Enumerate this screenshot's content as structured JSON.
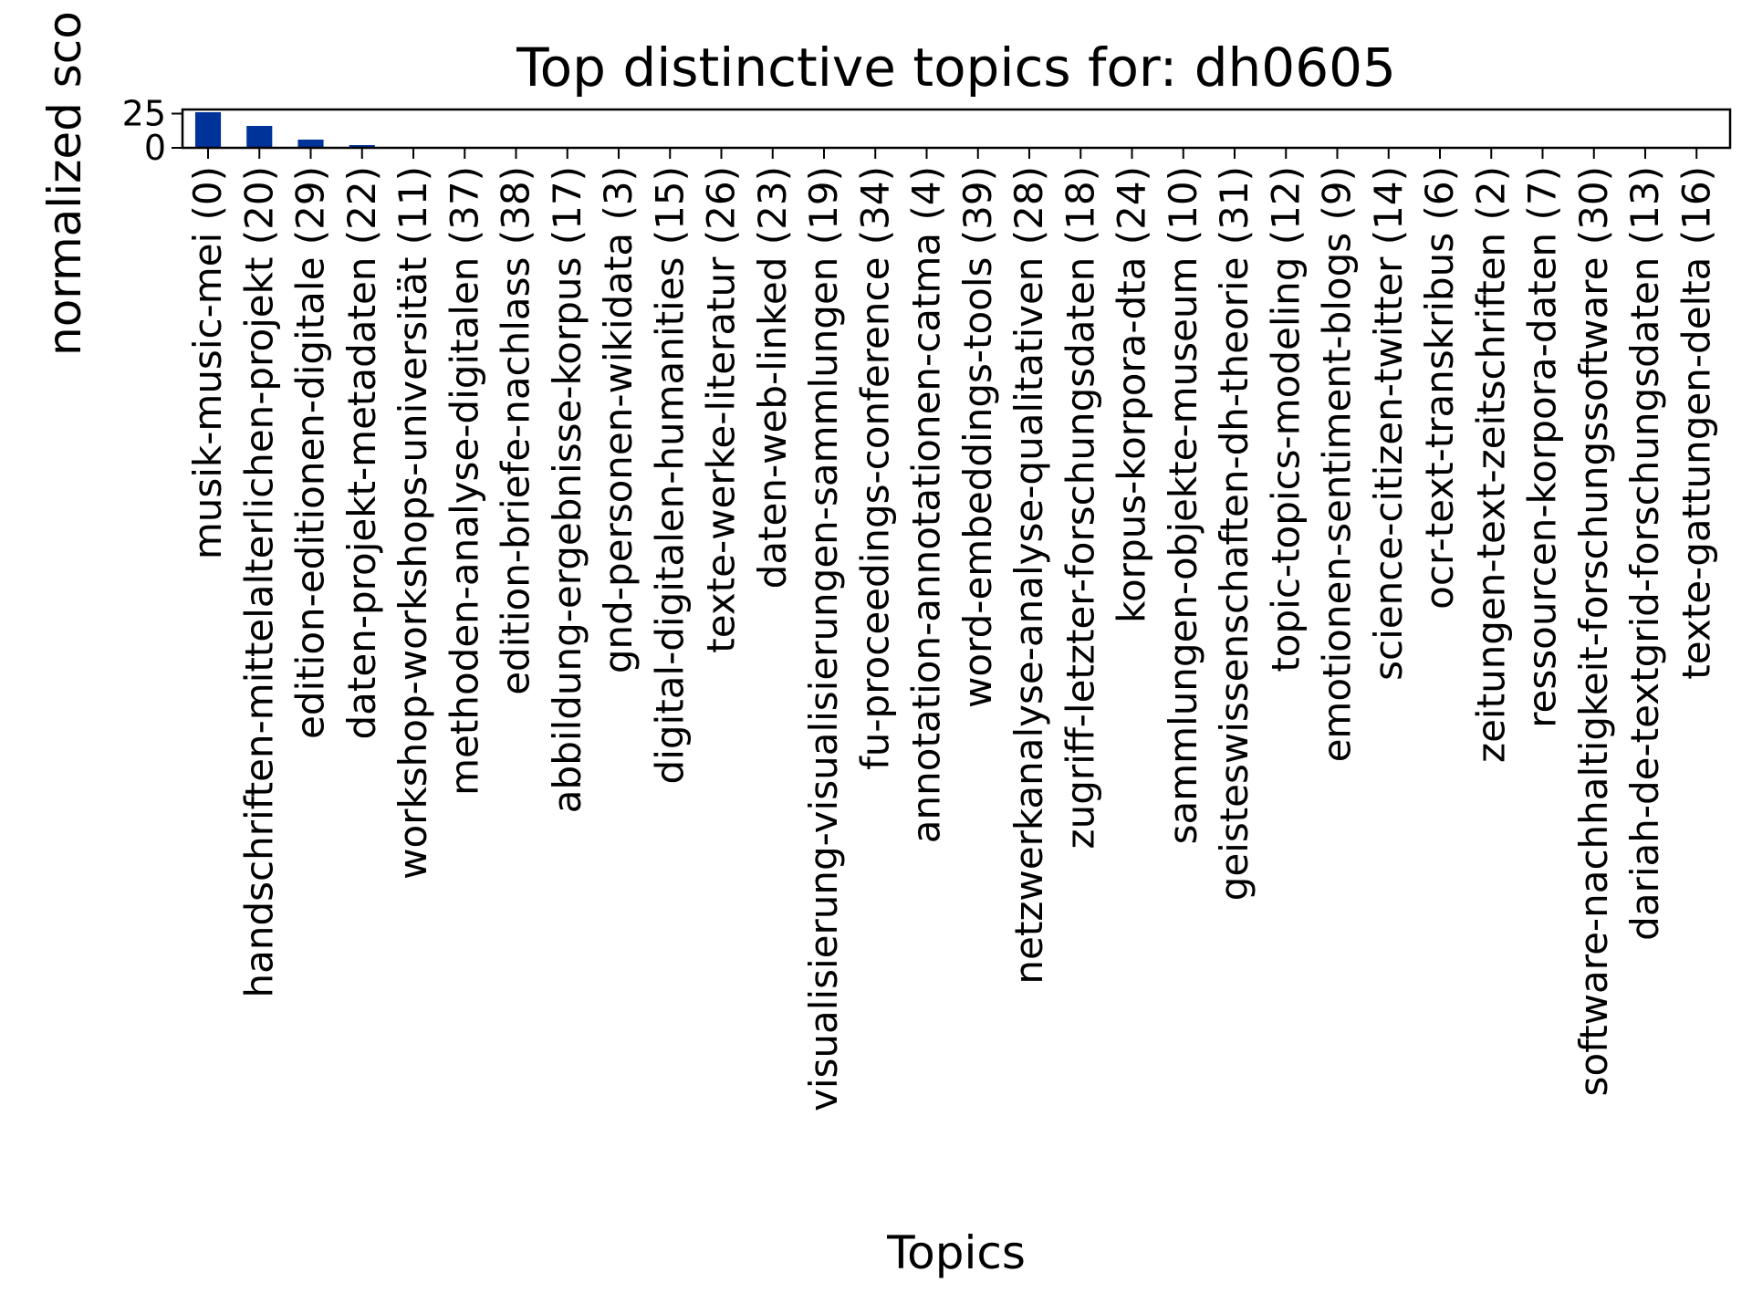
{
  "chart_data": {
    "type": "bar",
    "title": "Top distinctive topics for: dh0605",
    "xlabel": "Topics",
    "ylabel": "normalized sco",
    "ylim": [
      0,
      28
    ],
    "yticks": [
      0,
      25
    ],
    "grid": false,
    "bar_color": "#003399",
    "categories": [
      "musik-music-mei (0)",
      "handschriften-mittelalterlichen-projekt (20)",
      "edition-editionen-digitale (29)",
      "daten-projekt-metadaten (22)",
      "workshop-workshops-universität (11)",
      "methoden-analyse-digitalen (37)",
      "edition-briefe-nachlass (38)",
      "abbildung-ergebnisse-korpus (17)",
      "gnd-personen-wikidata (3)",
      "digital-digitalen-humanities (15)",
      "texte-werke-literatur (26)",
      "daten-web-linked (23)",
      "visualisierung-visualisierungen-sammlungen (19)",
      "fu-proceedings-conference (34)",
      "annotation-annotationen-catma (4)",
      "word-embeddings-tools (39)",
      "netzwerkanalyse-analyse-qualitativen (28)",
      "zugriff-letzter-forschungsdaten (18)",
      "korpus-korpora-dta (24)",
      "sammlungen-objekte-museum (10)",
      "geisteswissenschaften-dh-theorie (31)",
      "topic-topics-modeling (12)",
      "emotionen-sentiment-blogs (9)",
      "science-citizen-twitter (14)",
      "ocr-text-transkribus (6)",
      "zeitungen-text-zeitschriften (2)",
      "ressourcen-korpora-daten (7)",
      "software-nachhaltigkeit-forschungssoftware (30)",
      "dariah-de-textgrid-forschungsdaten (13)",
      "texte-gattungen-delta (16)"
    ],
    "values": [
      26,
      16,
      6,
      2,
      0.3,
      0.2,
      0.2,
      0.2,
      0.15,
      0.15,
      0.1,
      0.1,
      0.1,
      0.1,
      0.1,
      0.1,
      0.05,
      0.05,
      0.05,
      0.05,
      0.05,
      0.05,
      0.05,
      0.05,
      0.05,
      0.05,
      0.05,
      0.05,
      0.05,
      0.05
    ]
  }
}
